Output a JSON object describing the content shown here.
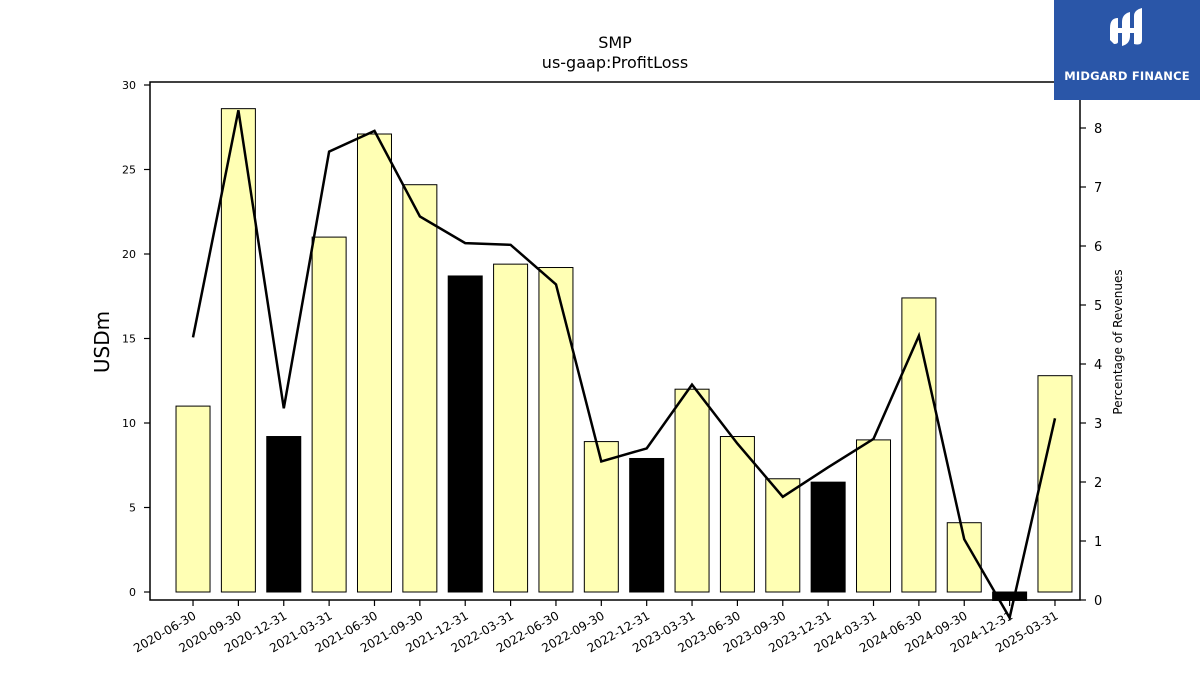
{
  "brand": {
    "name": "MIDGARD FINANCE",
    "bg_color": "#2a56a8"
  },
  "chart_data": {
    "type": "bar",
    "title": "SMP",
    "subtitle": "us-gaap:ProfitLoss",
    "ylabel": "USDm",
    "y2label": "Percentage of Revenues",
    "ylim": [
      -0.5,
      30.5
    ],
    "y2lim": [
      0,
      8.7
    ],
    "yticks": [
      0,
      5,
      10,
      15,
      20,
      25,
      30
    ],
    "y2ticks": [
      0,
      1,
      2,
      3,
      4,
      5,
      6,
      7,
      8
    ],
    "categories": [
      "2020-06-30",
      "2020-09-30",
      "2020-12-31",
      "2021-03-31",
      "2021-06-30",
      "2021-09-30",
      "2021-12-31",
      "2022-03-31",
      "2022-06-30",
      "2022-09-30",
      "2022-12-31",
      "2023-03-31",
      "2023-06-30",
      "2023-09-30",
      "2023-12-31",
      "2024-03-31",
      "2024-06-30",
      "2024-09-30",
      "2024-12-31",
      "2025-03-31"
    ],
    "series": [
      {
        "type": "bar",
        "values": [
          11.0,
          28.6,
          9.2,
          21.0,
          27.1,
          24.1,
          18.7,
          19.4,
          19.2,
          8.9,
          7.9,
          12.0,
          9.2,
          6.7,
          6.5,
          9.0,
          17.4,
          4.1,
          -0.5,
          12.8
        ],
        "highlight": [
          false,
          false,
          true,
          false,
          false,
          false,
          true,
          false,
          false,
          false,
          true,
          false,
          false,
          false,
          true,
          false,
          false,
          false,
          true,
          false
        ],
        "color": "#ffffb4",
        "highlight_color": "#000000"
      },
      {
        "type": "line",
        "axis": "right",
        "values": [
          4.45,
          8.3,
          3.25,
          7.6,
          7.95,
          6.5,
          6.05,
          6.02,
          5.35,
          2.35,
          2.57,
          3.65,
          2.65,
          1.75,
          2.25,
          2.73,
          4.48,
          1.03,
          -0.3,
          3.08
        ],
        "color": "#000000"
      }
    ],
    "grid": false,
    "legend": "none"
  }
}
